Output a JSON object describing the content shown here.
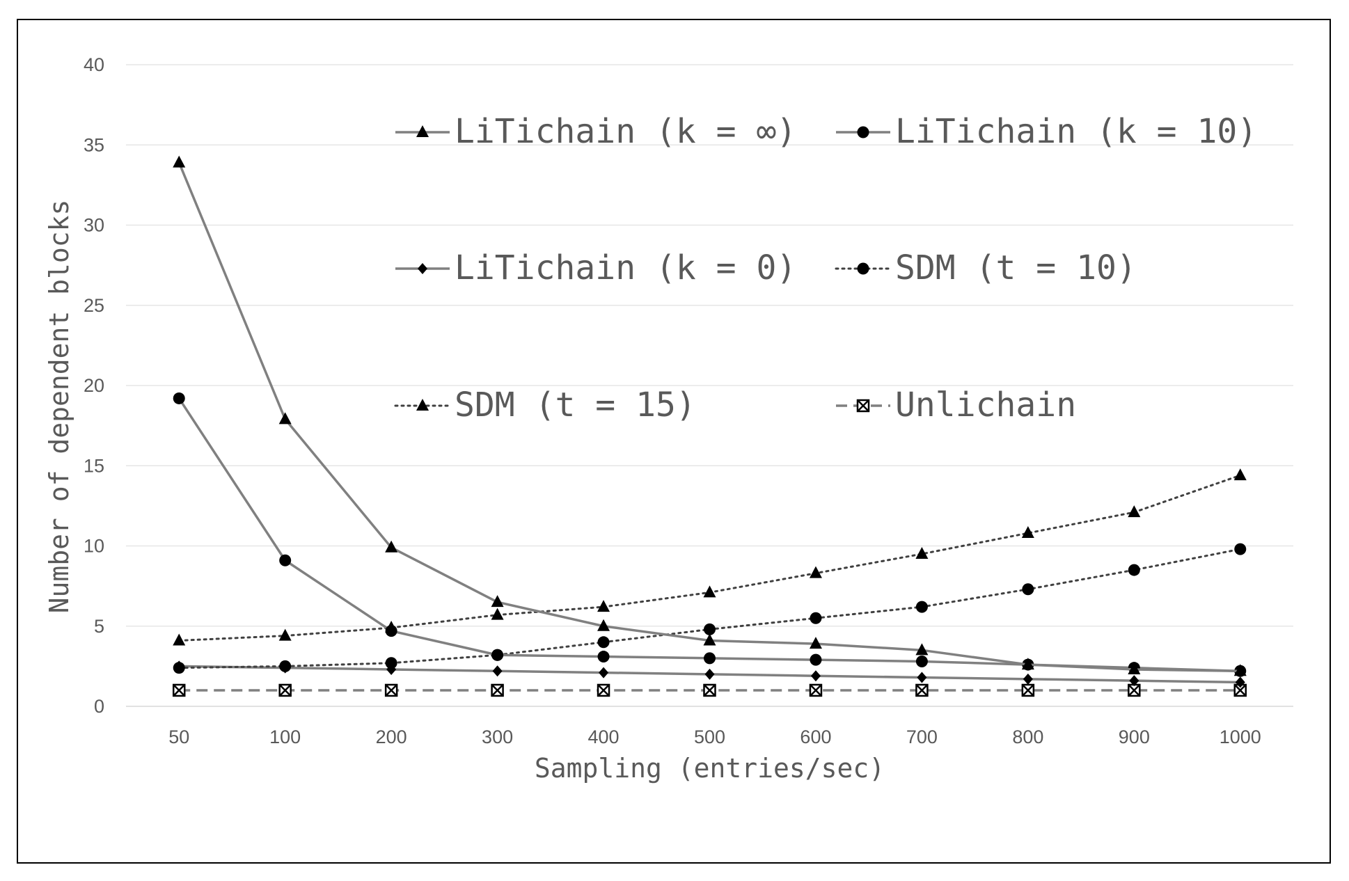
{
  "chart_data": {
    "type": "line",
    "title": "",
    "xlabel": "Sampling (entries/sec)",
    "ylabel": "Number of dependent blocks",
    "categories": [
      "50",
      "100",
      "200",
      "300",
      "400",
      "500",
      "600",
      "700",
      "800",
      "900",
      "1000"
    ],
    "ylim": [
      0,
      40
    ],
    "yticks": [
      "0",
      "5",
      "10",
      "15",
      "20",
      "25",
      "30",
      "35",
      "40"
    ],
    "grid": "horizontal",
    "legend_position": "inside-top",
    "series": [
      {
        "name": "LiTichain (k = ∞)",
        "marker": "triangle",
        "line": "solid",
        "color": "#808080",
        "values": [
          33.9,
          17.9,
          9.9,
          6.5,
          5.0,
          4.1,
          3.9,
          3.5,
          2.6,
          2.3,
          2.2
        ]
      },
      {
        "name": "LiTichain (k = 10)",
        "marker": "circle",
        "line": "solid",
        "color": "#808080",
        "values": [
          19.2,
          9.1,
          4.7,
          3.2,
          3.1,
          3.0,
          2.9,
          2.8,
          2.6,
          2.4,
          2.2
        ]
      },
      {
        "name": "LiTichain (k = 0)",
        "marker": "diamond",
        "line": "solid",
        "color": "#808080",
        "values": [
          2.5,
          2.4,
          2.3,
          2.2,
          2.1,
          2.0,
          1.9,
          1.8,
          1.7,
          1.6,
          1.5
        ]
      },
      {
        "name": "SDM (t = 10)",
        "marker": "circle",
        "line": "dotted",
        "color": "#404040",
        "values": [
          2.4,
          2.5,
          2.7,
          3.2,
          4.0,
          4.8,
          5.5,
          6.2,
          7.3,
          8.5,
          9.8
        ]
      },
      {
        "name": "SDM (t = 15)",
        "marker": "triangle",
        "line": "dotted",
        "color": "#404040",
        "values": [
          4.1,
          4.4,
          4.9,
          5.7,
          6.2,
          7.1,
          8.3,
          9.5,
          10.8,
          12.1,
          14.4
        ]
      },
      {
        "name": "Unlichain",
        "marker": "crossed-square",
        "line": "dashed",
        "color": "#808080",
        "values": [
          1,
          1,
          1,
          1,
          1,
          1,
          1,
          1,
          1,
          1,
          1
        ]
      }
    ]
  }
}
